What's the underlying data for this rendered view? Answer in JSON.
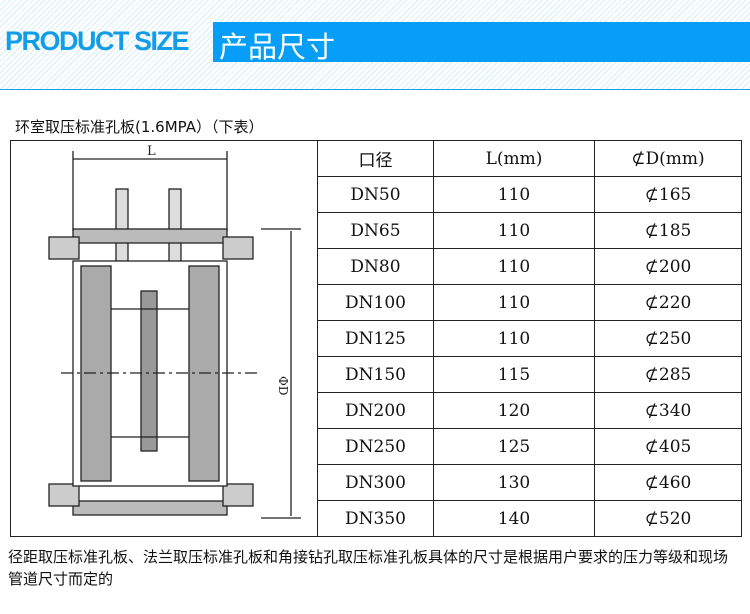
{
  "header": {
    "title_en": "PRODUCT SIZE",
    "title_cn": "产品尺寸",
    "accent": "#069ef7"
  },
  "subtitle": "环室取压标准孔板(1.6MPA）（下表）",
  "drawing": {
    "label_L": "L",
    "label_D": "ΦD"
  },
  "table": {
    "headers": [
      "口径",
      "L(mm)",
      "⊄D(mm)"
    ],
    "rows": [
      [
        "DN50",
        "110",
        "⊄165"
      ],
      [
        "DN65",
        "110",
        "⊄185"
      ],
      [
        "DN80",
        "110",
        "⊄200"
      ],
      [
        "DN100",
        "110",
        "⊄220"
      ],
      [
        "DN125",
        "110",
        "⊄250"
      ],
      [
        "DN150",
        "115",
        "⊄285"
      ],
      [
        "DN200",
        "120",
        "⊄340"
      ],
      [
        "DN250",
        "125",
        "⊄405"
      ],
      [
        "DN300",
        "130",
        "⊄460"
      ],
      [
        "DN350",
        "140",
        "⊄520"
      ]
    ]
  },
  "note": "径距取压标准孔板、法兰取压标准孔板和角接钻孔取压标准孔板具体的尺寸是根据用户要求的压力等级和现场管道尺寸而定的"
}
